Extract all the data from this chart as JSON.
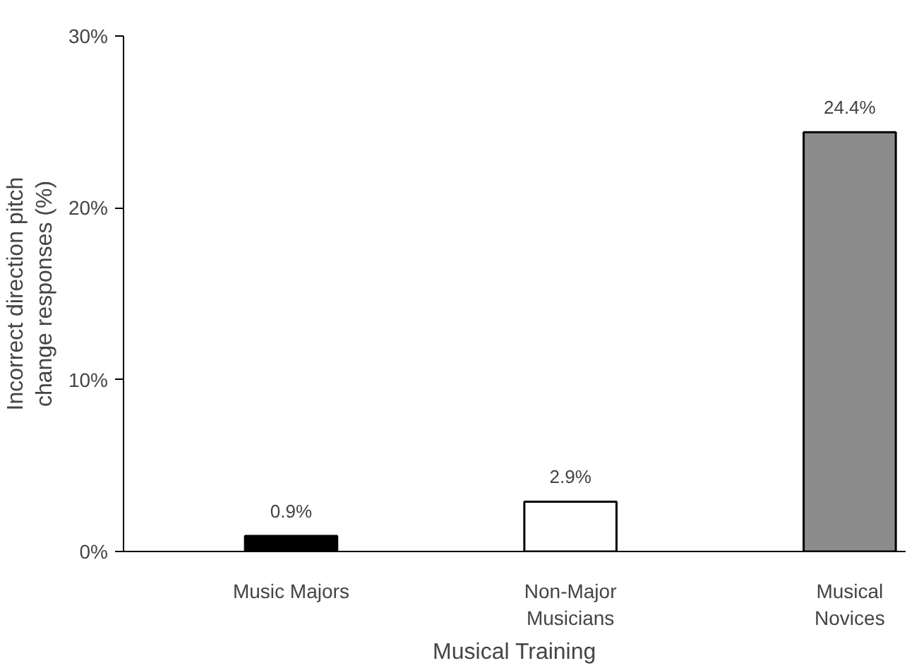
{
  "chart_data": {
    "type": "bar",
    "xlabel": "Musical Training",
    "ylabel": "Incorrect direction pitch\nchange responses (%)",
    "categories": [
      "Music Majors",
      "Non-Major\nMusicians",
      "Musical\nNovices"
    ],
    "values": [
      0.9,
      2.9,
      24.4
    ],
    "colors": [
      "#000000",
      "#ffffff",
      "#8c8c8c"
    ],
    "value_labels": [
      "0.9%",
      "2.9%",
      "24.4%"
    ],
    "ylim": [
      0,
      30
    ],
    "yticks": [
      {
        "value": 0,
        "label": "0%"
      },
      {
        "value": 10,
        "label": "10%"
      },
      {
        "value": 20,
        "label": "20%"
      },
      {
        "value": 30,
        "label": "30%"
      }
    ],
    "grid": false
  }
}
